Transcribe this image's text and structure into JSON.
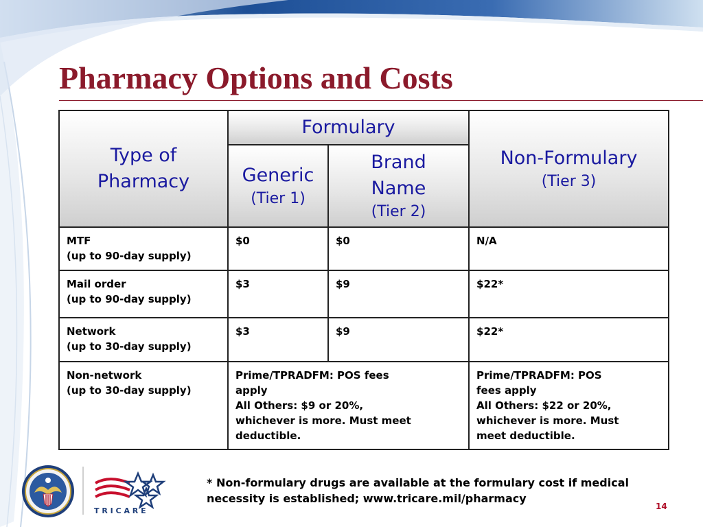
{
  "slide": {
    "title": "Pharmacy Options and Costs",
    "page_number": "14"
  },
  "table": {
    "headers": {
      "type": [
        "Type of",
        "Pharmacy"
      ],
      "formulary": "Formulary",
      "generic": {
        "label": "Generic",
        "tier": "(Tier 1)"
      },
      "brand": {
        "label": [
          "Brand",
          "Name"
        ],
        "tier": "(Tier 2)"
      },
      "nonformulary": {
        "label": "Non-Formulary",
        "tier": "(Tier 3)"
      }
    },
    "rows": [
      {
        "type": "MTF\n(up to 90-day supply)",
        "generic": "$0",
        "brand": "$0",
        "nonformulary": "N/A"
      },
      {
        "type": "Mail order\n(up to 90-day supply)",
        "generic": "$3",
        "brand": "$9",
        "nonformulary": "$22*"
      },
      {
        "type": "Network\n(up to 30-day supply)",
        "generic": "$3",
        "brand": "$9",
        "nonformulary": "$22*"
      },
      {
        "type": "Non-network\n(up to 30-day supply)",
        "formulary": "Prime/TPRADFM: POS fees\napply\nAll Others: $9 or 20%,\nwhichever is more. Must meet\ndeductible.",
        "nonformulary": "Prime/TPRADFM: POS\nfees apply\nAll Others: $22 or 20%,\nwhichever is more. Must\nmeet deductible."
      }
    ]
  },
  "footnote": [
    "* Non-formulary drugs are available at the formulary cost if medical",
    "necessity is established; www.tricare.mil/pharmacy"
  ],
  "logos": {
    "seal_icon": "department-of-defense-seal-icon",
    "tricare_icon": "tricare-logo-icon",
    "tricare_wordmark": "T R I C A R E"
  },
  "colors": {
    "title": "#8b1a2b",
    "header_text": "#1a1aa0",
    "page_number": "#b0102a"
  }
}
